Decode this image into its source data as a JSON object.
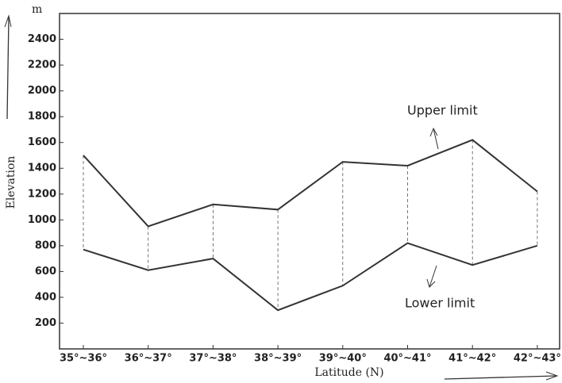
{
  "chart_data": {
    "type": "line",
    "y_unit": "m",
    "ylabel": "Elevation",
    "xlabel": "Latitude (N)",
    "categories": [
      "35°~36°",
      "36°~37°",
      "37°~38°",
      "38°~39°",
      "39°~40°",
      "40°~41°",
      "41°~42°",
      "42°~43°"
    ],
    "series": [
      {
        "name": "Upper limit",
        "color": "#333333",
        "values": [
          1500,
          950,
          1120,
          1080,
          1450,
          1420,
          1620,
          1220
        ]
      },
      {
        "name": "Lower limit",
        "color": "#333333",
        "values": [
          770,
          610,
          700,
          300,
          490,
          820,
          650,
          800
        ]
      }
    ],
    "ylim": [
      0,
      2600
    ],
    "yticks": [
      200,
      400,
      600,
      800,
      1000,
      1200,
      1400,
      1600,
      1800,
      2000,
      2200,
      2400
    ]
  }
}
